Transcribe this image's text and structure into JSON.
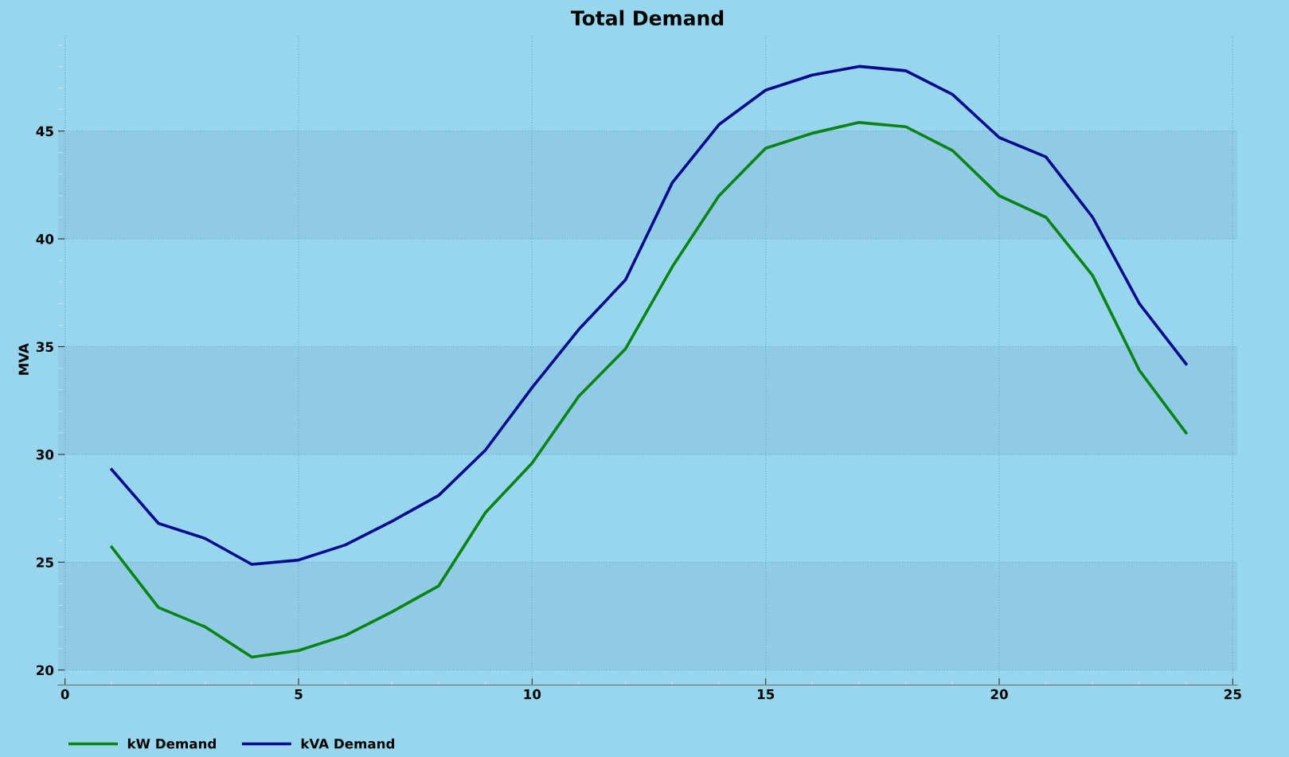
{
  "chart_data": {
    "type": "line",
    "title": "Total Demand",
    "ylabel": "MVA",
    "x": [
      1,
      2,
      3,
      4,
      5,
      6,
      7,
      8,
      9,
      10,
      11,
      12,
      13,
      14,
      15,
      16,
      17,
      18,
      19,
      20,
      21,
      22,
      23,
      24
    ],
    "series": [
      {
        "name": "kW Demand",
        "color": "#0a8214",
        "values": [
          25.7,
          22.9,
          22.0,
          20.6,
          20.9,
          21.6,
          22.7,
          23.9,
          27.3,
          29.6,
          32.7,
          34.9,
          38.7,
          42.0,
          44.2,
          44.9,
          45.4,
          45.2,
          44.1,
          42.0,
          41.0,
          38.3,
          33.9,
          31.0
        ]
      },
      {
        "name": "kVA Demand",
        "color": "#000a8c",
        "values": [
          29.3,
          26.8,
          26.1,
          24.9,
          25.1,
          25.8,
          26.9,
          28.1,
          30.2,
          33.1,
          35.8,
          38.1,
          42.6,
          45.3,
          46.9,
          47.6,
          48.0,
          47.8,
          46.7,
          44.7,
          43.8,
          41.0,
          37.0,
          34.2
        ]
      }
    ],
    "xlim": [
      -0.15,
      25.1
    ],
    "ylim": [
      19.3,
      49.5
    ],
    "xticks": [
      0,
      {
        "value": 1,
        "label": null
      },
      {
        "value": 2,
        "label": null
      },
      {
        "value": 3,
        "label": null
      },
      {
        "value": 4,
        "label": null
      },
      5,
      {
        "value": 6,
        "label": null
      },
      {
        "value": 7,
        "label": null
      },
      {
        "value": 8,
        "label": null
      },
      {
        "value": 9,
        "label": null
      },
      10,
      {
        "value": 11,
        "label": null
      },
      {
        "value": 12,
        "label": null
      },
      {
        "value": 13,
        "label": null
      },
      {
        "value": 14,
        "label": null
      },
      15,
      {
        "value": 16,
        "label": null
      },
      {
        "value": 17,
        "label": null
      },
      {
        "value": 18,
        "label": null
      },
      {
        "value": 19,
        "label": null
      },
      20,
      {
        "value": 21,
        "label": null
      },
      {
        "value": 22,
        "label": null
      },
      {
        "value": 23,
        "label": null
      },
      {
        "value": 24,
        "label": null
      },
      25
    ],
    "yticks": [
      20,
      {
        "value": 21,
        "label": null
      },
      {
        "value": 22,
        "label": null
      },
      {
        "value": 23,
        "label": null
      },
      {
        "value": 24,
        "label": null
      },
      25,
      {
        "value": 26,
        "label": null
      },
      {
        "value": 27,
        "label": null
      },
      {
        "value": 28,
        "label": null
      },
      {
        "value": 29,
        "label": null
      },
      30,
      {
        "value": 31,
        "label": null
      },
      {
        "value": 32,
        "label": null
      },
      {
        "value": 33,
        "label": null
      },
      {
        "value": 34,
        "label": null
      },
      35,
      {
        "value": 36,
        "label": null
      },
      {
        "value": 37,
        "label": null
      },
      {
        "value": 38,
        "label": null
      },
      {
        "value": 39,
        "label": null
      },
      40,
      {
        "value": 41,
        "label": null
      },
      {
        "value": 42,
        "label": null
      },
      {
        "value": 43,
        "label": null
      },
      {
        "value": 44,
        "label": null
      },
      45,
      {
        "value": 46,
        "label": null
      },
      {
        "value": 47,
        "label": null
      },
      {
        "value": 48,
        "label": null
      },
      {
        "value": 49,
        "label": null
      }
    ],
    "bands": [
      {
        "axis": "y",
        "from": 20,
        "to": 25,
        "color": "#8fcbe4"
      },
      {
        "axis": "y",
        "from": 30,
        "to": 35,
        "color": "#8fcbe4"
      },
      {
        "axis": "y",
        "from": 40,
        "to": 45,
        "color": "#8fcbe4"
      }
    ],
    "grid": true,
    "legend": "bottom left",
    "marker": "none",
    "line_style": "solid"
  }
}
